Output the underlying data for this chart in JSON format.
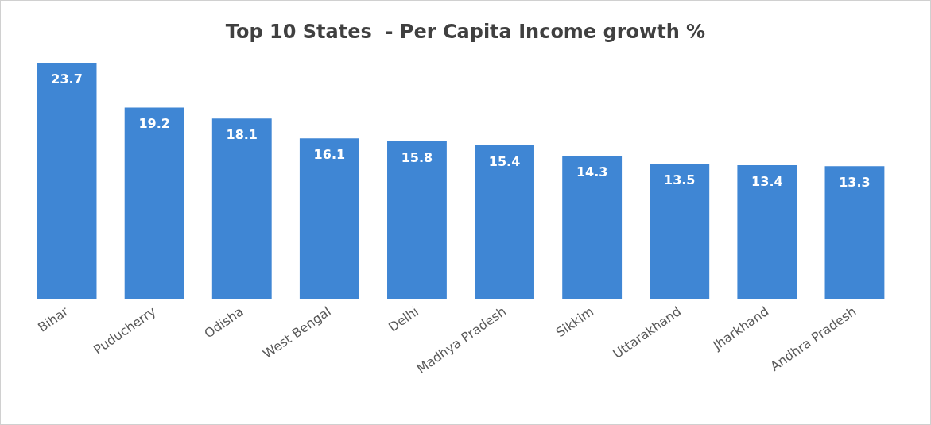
{
  "chart_data": {
    "type": "bar",
    "title": "Top 10 States  - Per Capita Income growth %",
    "categories": [
      "Bihar",
      "Puducherry",
      "Odisha",
      "West Bengal",
      "Delhi",
      "Madhya Pradesh",
      "Sikkim",
      "Uttarakhand",
      "Jharkhand",
      "Andhra Pradesh"
    ],
    "values": [
      23.7,
      19.2,
      18.1,
      16.1,
      15.8,
      15.4,
      14.3,
      13.5,
      13.4,
      13.3
    ],
    "color": "#3f86d4",
    "data_labels": true
  }
}
